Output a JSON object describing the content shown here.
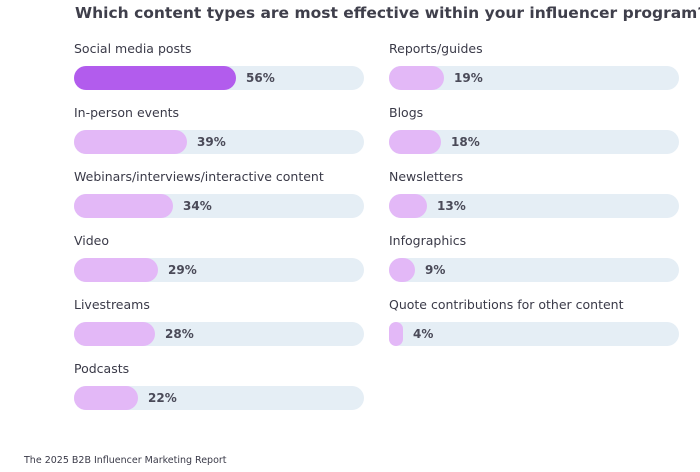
{
  "title": "Which content types are most effective within your influencer program?",
  "source": "The 2025 B2B Influencer Marketing Report",
  "colors": {
    "highlight": "#b25ced",
    "bar": "#e3b8f7",
    "track": "#e5eef5"
  },
  "chart_data": {
    "type": "bar",
    "orientation": "horizontal",
    "title": "Which content types are most effective within your influencer program?",
    "categories": [
      "Social media posts",
      "In-person events",
      "Webinars/interviews/interactive content",
      "Video",
      "Livestreams",
      "Podcasts",
      "Reports/guides",
      "Blogs",
      "Newsletters",
      "Infographics",
      "Quote contributions for other content"
    ],
    "values": [
      56,
      39,
      34,
      29,
      28,
      22,
      19,
      18,
      13,
      9,
      4
    ],
    "value_labels": [
      "56%",
      "39%",
      "34%",
      "29%",
      "28%",
      "22%",
      "19%",
      "18%",
      "13%",
      "9%",
      "4%"
    ],
    "xlim": [
      0,
      100
    ],
    "grid": false,
    "legend": "none"
  }
}
